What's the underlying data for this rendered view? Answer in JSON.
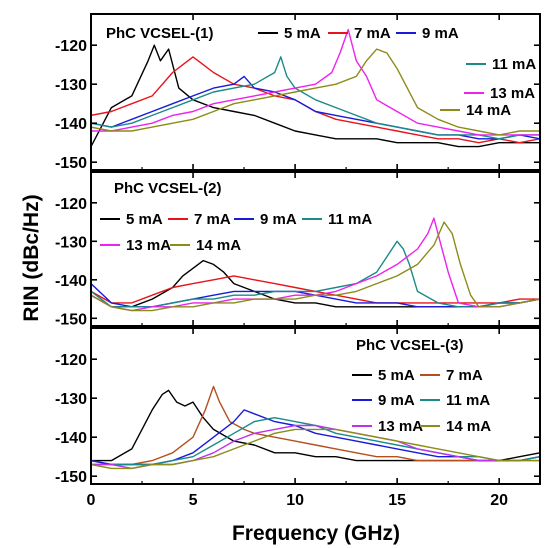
{
  "figure": {
    "ylabel": "RIN (dBc/Hz)",
    "xlabel": "Frequency (GHz)"
  },
  "chart_data": [
    {
      "type": "line",
      "title": "PhC VCSEL-(1)",
      "xlim": [
        0,
        22
      ],
      "ylim": [
        -152,
        -112
      ],
      "xticks": [
        0,
        5,
        10,
        15,
        20
      ],
      "yticks": [
        -120,
        -130,
        -140,
        -150
      ],
      "legend": "top",
      "series": [
        {
          "name": "5 mA",
          "color": "#000000",
          "x": [
            0,
            1,
            2,
            2.8,
            3.1,
            3.4,
            3.8,
            4.3,
            5,
            6,
            7,
            8,
            9,
            10,
            11,
            12,
            13,
            14,
            15,
            16,
            17,
            18,
            19,
            20,
            21,
            22
          ],
          "y": [
            -146,
            -136,
            -133,
            -124,
            -120,
            -124,
            -121,
            -131,
            -134,
            -136,
            -137,
            -138,
            -140,
            -142,
            -143,
            -144,
            -144,
            -144,
            -145,
            -145,
            -145,
            -146,
            -146,
            -145,
            -145,
            -145
          ]
        },
        {
          "name": "7 mA",
          "color": "#e8141c",
          "x": [
            0,
            1,
            2,
            3,
            4,
            4.5,
            5,
            5.5,
            6,
            7,
            8,
            9,
            10,
            11,
            12,
            13,
            14,
            15,
            16,
            17,
            18,
            19,
            20,
            21,
            22
          ],
          "y": [
            -138,
            -137,
            -135,
            -133,
            -127,
            -125,
            -123,
            -125,
            -127,
            -130,
            -131,
            -133,
            -134,
            -137,
            -139,
            -140,
            -141,
            -142,
            -143,
            -144,
            -144,
            -145,
            -144,
            -145,
            -144
          ]
        },
        {
          "name": "9 mA",
          "color": "#1a1adb",
          "x": [
            0,
            1,
            2,
            3,
            4,
            5,
            6,
            7,
            7.5,
            8,
            9,
            10,
            11,
            12,
            13,
            14,
            15,
            16,
            17,
            18,
            19,
            20,
            21,
            22
          ],
          "y": [
            -140,
            -141,
            -139,
            -137,
            -135,
            -133,
            -131,
            -130,
            -128,
            -131,
            -132,
            -134,
            -137,
            -138,
            -139,
            -140,
            -141,
            -142,
            -143,
            -143,
            -144,
            -144,
            -143,
            -144
          ]
        },
        {
          "name": "11 mA",
          "color": "#1a8a8a",
          "x": [
            0,
            1,
            2,
            3,
            4,
            5,
            6,
            7,
            8,
            9,
            9.3,
            9.6,
            10,
            11,
            12,
            13,
            14,
            15,
            16,
            17,
            18,
            19,
            20,
            21,
            22
          ],
          "y": [
            -140,
            -141,
            -140,
            -138,
            -136,
            -134,
            -132,
            -131,
            -130,
            -127,
            -123,
            -128,
            -131,
            -134,
            -136,
            -138,
            -140,
            -141,
            -142,
            -143,
            -143,
            -143,
            -144,
            -143,
            -143
          ]
        },
        {
          "name": "13 mA",
          "color": "#ee22ee",
          "x": [
            0,
            1,
            2,
            3,
            4,
            5,
            6,
            7,
            8,
            9,
            10,
            11,
            11.8,
            12.2,
            12.6,
            13,
            13.5,
            14,
            15,
            16,
            17,
            18,
            19,
            20,
            21,
            22
          ],
          "y": [
            -142,
            -142,
            -141,
            -140,
            -138,
            -137,
            -135,
            -134,
            -133,
            -132,
            -131,
            -130,
            -127,
            -122,
            -116,
            -124,
            -128,
            -134,
            -137,
            -140,
            -141,
            -142,
            -143,
            -143,
            -143,
            -143
          ]
        },
        {
          "name": "14 mA",
          "color": "#8c8c1a",
          "x": [
            0,
            1,
            2,
            3,
            4,
            5,
            6,
            7,
            8,
            9,
            10,
            11,
            12,
            13,
            13.5,
            14,
            14.5,
            15,
            15.5,
            16,
            17,
            18,
            19,
            20,
            21,
            22
          ],
          "y": [
            -141,
            -142,
            -142,
            -141,
            -140,
            -139,
            -137,
            -135,
            -134,
            -133,
            -132,
            -131,
            -130,
            -128,
            -124,
            -121,
            -122,
            -126,
            -131,
            -136,
            -139,
            -141,
            -142,
            -143,
            -142,
            -142
          ]
        }
      ]
    },
    {
      "type": "line",
      "title": "PhC VCSEL-(2)",
      "xlim": [
        0,
        22
      ],
      "ylim": [
        -152,
        -112
      ],
      "xticks": [
        0,
        5,
        10,
        15,
        20
      ],
      "yticks": [
        -120,
        -130,
        -140,
        -150
      ],
      "legend": "top-left",
      "series": [
        {
          "name": "5 mA",
          "color": "#000000",
          "x": [
            0,
            1,
            2,
            3,
            4,
            4.5,
            5,
            5.5,
            6,
            6.5,
            7,
            8,
            9,
            10,
            11,
            12,
            13,
            14,
            15,
            16,
            17,
            18,
            19,
            20,
            21,
            22
          ],
          "y": [
            -144,
            -147,
            -147,
            -145,
            -142,
            -139,
            -137,
            -135,
            -136,
            -138,
            -141,
            -143,
            -145,
            -146,
            -146,
            -147,
            -147,
            -147,
            -147,
            -147,
            -147,
            -147,
            -147,
            -146,
            -146,
            -145
          ]
        },
        {
          "name": "7 mA",
          "color": "#e8141c",
          "x": [
            0,
            1,
            2,
            3,
            4,
            5,
            6,
            7,
            8,
            9,
            10,
            11,
            12,
            13,
            14,
            15,
            16,
            17,
            18,
            19,
            20,
            21,
            22
          ],
          "y": [
            -143,
            -146,
            -146,
            -144,
            -142,
            -141,
            -140,
            -139,
            -140,
            -141,
            -142,
            -143,
            -144,
            -145,
            -146,
            -146,
            -146,
            -146,
            -146,
            -146,
            -146,
            -145,
            -145
          ]
        },
        {
          "name": "9 mA",
          "color": "#1a1adb",
          "x": [
            0,
            1,
            2,
            3,
            4,
            5,
            6,
            7,
            8,
            9,
            10,
            11,
            12,
            13,
            14,
            15,
            16,
            17,
            18,
            19,
            20,
            21,
            22
          ],
          "y": [
            -141,
            -146,
            -147,
            -147,
            -146,
            -145,
            -144,
            -143,
            -143,
            -143,
            -143,
            -144,
            -145,
            -146,
            -146,
            -146,
            -147,
            -147,
            -147,
            -147,
            -146,
            -146,
            -145
          ]
        },
        {
          "name": "11 mA",
          "color": "#1a8a8a",
          "x": [
            0,
            1,
            2,
            3,
            4,
            5,
            6,
            7,
            8,
            9,
            10,
            11,
            12,
            13,
            14,
            14.5,
            15,
            15.3,
            15.6,
            16,
            17,
            18,
            19,
            20,
            21,
            22
          ],
          "y": [
            -143,
            -147,
            -147,
            -147,
            -146,
            -145,
            -145,
            -144,
            -144,
            -143,
            -143,
            -143,
            -142,
            -141,
            -138,
            -134,
            -130,
            -132,
            -136,
            -143,
            -146,
            -147,
            -147,
            -146,
            -146,
            -145
          ]
        },
        {
          "name": "13 mA",
          "color": "#ee22ee",
          "x": [
            0,
            1,
            2,
            3,
            4,
            5,
            6,
            7,
            8,
            9,
            10,
            11,
            12,
            13,
            14,
            15,
            16,
            16.5,
            16.8,
            17.1,
            17.5,
            18,
            19,
            20,
            21,
            22
          ],
          "y": [
            -144,
            -147,
            -148,
            -147,
            -147,
            -146,
            -146,
            -145,
            -145,
            -145,
            -144,
            -144,
            -143,
            -141,
            -139,
            -136,
            -132,
            -128,
            -124,
            -130,
            -138,
            -146,
            -147,
            -147,
            -146,
            -145
          ]
        },
        {
          "name": "14 mA",
          "color": "#8c8c1a",
          "x": [
            0,
            1,
            2,
            3,
            4,
            5,
            6,
            7,
            8,
            9,
            10,
            11,
            12,
            13,
            14,
            15,
            16,
            16.8,
            17.3,
            17.7,
            18.1,
            18.6,
            19,
            20,
            21,
            22
          ],
          "y": [
            -144,
            -147,
            -148,
            -148,
            -147,
            -147,
            -146,
            -146,
            -145,
            -145,
            -145,
            -144,
            -144,
            -143,
            -141,
            -139,
            -136,
            -131,
            -125,
            -128,
            -136,
            -144,
            -147,
            -147,
            -146,
            -145
          ]
        }
      ]
    },
    {
      "type": "line",
      "title": "PhC VCSEL-(3)",
      "xlim": [
        0,
        22
      ],
      "ylim": [
        -152,
        -112
      ],
      "xticks": [
        0,
        5,
        10,
        15,
        20
      ],
      "yticks": [
        -120,
        -130,
        -140,
        -150
      ],
      "xticklabels": [
        "0",
        "5",
        "10",
        "15",
        "20"
      ],
      "legend": "right",
      "series": [
        {
          "name": "5 mA",
          "color": "#000000",
          "x": [
            0,
            1,
            2,
            2.5,
            3,
            3.5,
            3.8,
            4.2,
            4.6,
            5,
            5.5,
            6,
            7,
            8,
            9,
            10,
            11,
            12,
            13,
            14,
            15,
            16,
            17,
            18,
            19,
            20,
            21,
            22
          ],
          "y": [
            -146,
            -146,
            -143,
            -138,
            -133,
            -129,
            -128,
            -131,
            -132,
            -131,
            -135,
            -138,
            -141,
            -142,
            -144,
            -144,
            -145,
            -145,
            -146,
            -146,
            -146,
            -146,
            -146,
            -146,
            -146,
            -146,
            -145,
            -144
          ]
        },
        {
          "name": "7 mA",
          "color": "#b4501e",
          "x": [
            0,
            1,
            2,
            3,
            4,
            5,
            5.6,
            6,
            6.3,
            6.8,
            7.5,
            8,
            9,
            10,
            11,
            12,
            13,
            14,
            15,
            16,
            17,
            18,
            19,
            20,
            21,
            22
          ],
          "y": [
            -146,
            -147,
            -147,
            -146,
            -144,
            -140,
            -133,
            -127,
            -131,
            -136,
            -138,
            -139,
            -140,
            -141,
            -142,
            -143,
            -144,
            -145,
            -145,
            -146,
            -146,
            -146,
            -146,
            -146,
            -146,
            -145
          ]
        },
        {
          "name": "9 mA",
          "color": "#1a1adb",
          "x": [
            0,
            1,
            2,
            3,
            4,
            5,
            6,
            7,
            7.5,
            8,
            9,
            10,
            11,
            12,
            13,
            14,
            15,
            16,
            17,
            18,
            19,
            20,
            21,
            22
          ],
          "y": [
            -146,
            -147,
            -147,
            -147,
            -146,
            -144,
            -140,
            -136,
            -133,
            -134,
            -136,
            -137,
            -139,
            -140,
            -141,
            -142,
            -143,
            -144,
            -145,
            -145,
            -146,
            -146,
            -146,
            -145
          ]
        },
        {
          "name": "11 mA",
          "color": "#1a8a8a",
          "x": [
            0,
            1,
            2,
            3,
            4,
            5,
            6,
            7,
            8,
            9,
            10,
            11,
            12,
            13,
            14,
            15,
            16,
            17,
            18,
            19,
            20,
            21,
            22
          ],
          "y": [
            -147,
            -147,
            -147,
            -147,
            -146,
            -145,
            -142,
            -139,
            -136,
            -135,
            -136,
            -137,
            -139,
            -140,
            -141,
            -142,
            -143,
            -144,
            -145,
            -145,
            -146,
            -146,
            -145
          ]
        },
        {
          "name": "13 mA",
          "color": "#bb33ee",
          "x": [
            0,
            1,
            2,
            3,
            4,
            5,
            6,
            7,
            8,
            9,
            10,
            11,
            12,
            13,
            14,
            15,
            16,
            17,
            18,
            19,
            20,
            21,
            22
          ],
          "y": [
            -147,
            -147,
            -148,
            -147,
            -147,
            -146,
            -144,
            -141,
            -139,
            -138,
            -137,
            -137,
            -138,
            -139,
            -140,
            -141,
            -143,
            -144,
            -145,
            -146,
            -146,
            -146,
            -146
          ]
        },
        {
          "name": "14 mA",
          "color": "#8c8c1a",
          "x": [
            0,
            1,
            2,
            3,
            4,
            5,
            6,
            7,
            8,
            9,
            10,
            11,
            12,
            13,
            14,
            15,
            16,
            17,
            18,
            19,
            20,
            21,
            22
          ],
          "y": [
            -147,
            -148,
            -148,
            -147,
            -147,
            -146,
            -145,
            -143,
            -141,
            -139,
            -138,
            -138,
            -138,
            -139,
            -140,
            -141,
            -142,
            -143,
            -144,
            -145,
            -146,
            -146,
            -146
          ]
        }
      ]
    }
  ]
}
